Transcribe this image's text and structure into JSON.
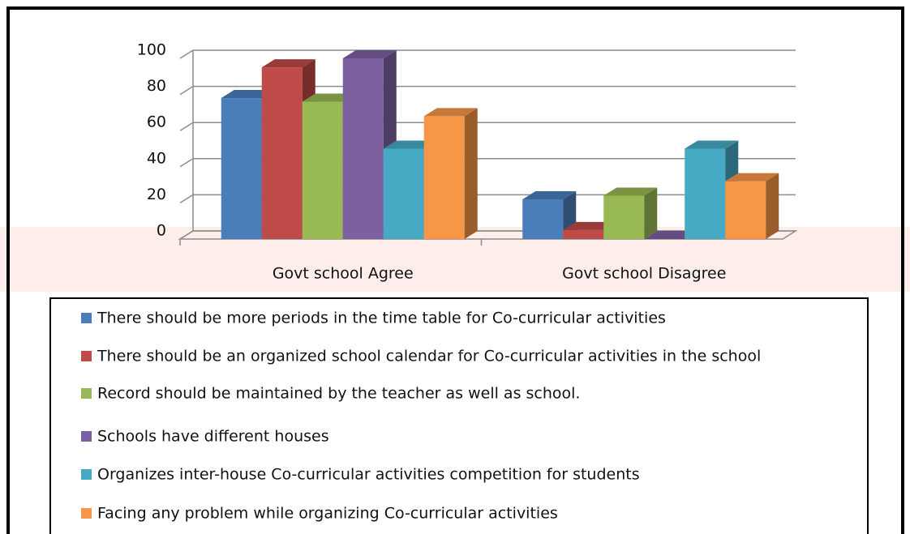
{
  "chart_data": {
    "type": "bar3d",
    "categories": [
      "Govt school Agree",
      "Govt school Disagree"
    ],
    "series": [
      {
        "name": "There should be more periods in the time table for Co-curricular activities",
        "color": "#4a7ebb",
        "values": [
          78,
          22
        ]
      },
      {
        "name": "There should be an organized school calendar for Co-curricular activities in the school",
        "color": "#be4b48",
        "values": [
          95,
          5
        ]
      },
      {
        "name": "Record should be maintained by the teacher as well as school.",
        "color": "#98b954",
        "values": [
          76,
          24
        ]
      },
      {
        "name": "Schools have different houses",
        "color": "#7d60a0",
        "values": [
          100,
          0
        ]
      },
      {
        "name": "Organizes inter-house Co-curricular activities competition for students",
        "color": "#46aac5",
        "values": [
          50,
          50
        ]
      },
      {
        "name": "Facing any problem while organizing Co-curricular activities",
        "color": "#f79646",
        "values": [
          68,
          32
        ]
      }
    ],
    "ylim": [
      0,
      100
    ],
    "yticks": [
      0,
      20,
      40,
      60,
      80,
      100
    ],
    "grid": true,
    "legend": "bottom"
  }
}
